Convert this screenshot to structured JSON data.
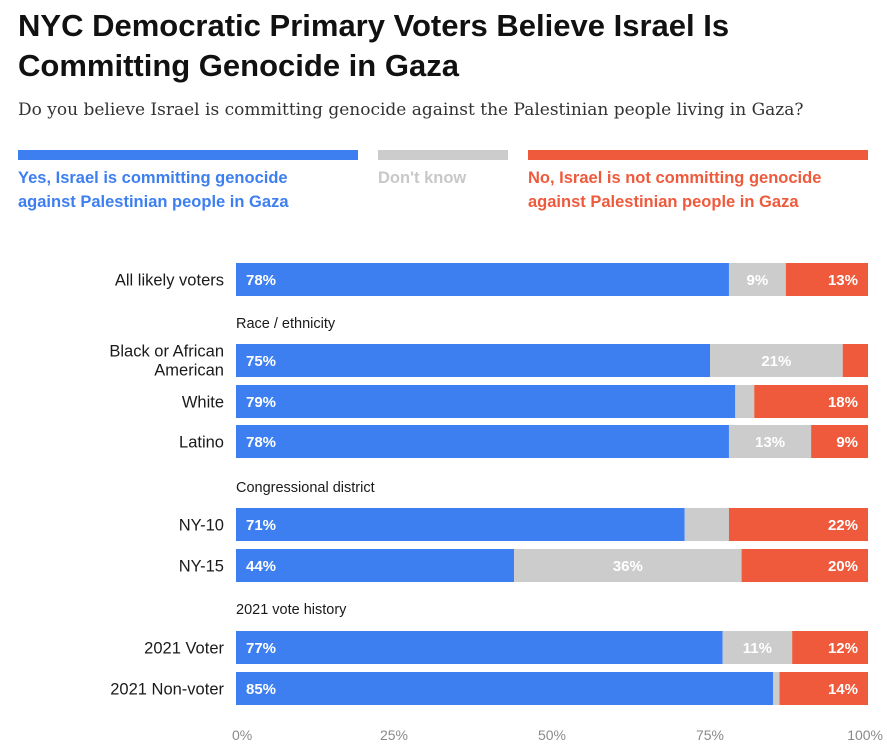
{
  "header": {
    "title": "NYC Democratic Primary Voters Believe Israel Is Committing Genocide in Gaza",
    "subtitle": "Do you believe Israel is committing genocide against the Palestinian people living in Gaza?"
  },
  "legend": [
    {
      "key": "yes",
      "text": "Yes, Israel is committing genocide against Palestinian people in Gaza"
    },
    {
      "key": "dk",
      "text": "Don't know"
    },
    {
      "key": "no",
      "text": "No, Israel is not committing genocide against Palestinian people in Gaza"
    }
  ],
  "colors": {
    "yes": "#3d7ff0",
    "dk": "#cccccc",
    "no": "#ef5a3c",
    "dk_text": "#c8c8c8"
  },
  "chart_data": {
    "type": "bar",
    "orientation": "horizontal",
    "stacked": true,
    "title": "NYC Democratic Primary Voters Believe Israel Is Committing Genocide in Gaza",
    "series": [
      {
        "key": "yes",
        "name": "Yes, Israel is committing genocide against Palestinian people in Gaza"
      },
      {
        "key": "dk",
        "name": "Don't know"
      },
      {
        "key": "no",
        "name": "No, Israel is not committing genocide against Palestinian people in Gaza"
      }
    ],
    "rows": [
      {
        "type": "bar",
        "label": "All likely voters",
        "values": {
          "yes": 78,
          "dk": 9,
          "no": 13
        },
        "labels": {
          "yes": "78%",
          "dk": "9%",
          "no": "13%"
        }
      },
      {
        "type": "group",
        "label": "Race / ethnicity"
      },
      {
        "type": "bar",
        "label": "Black or African American",
        "values": {
          "yes": 75,
          "dk": 21,
          "no": 4
        },
        "labels": {
          "yes": "75%",
          "dk": "21%",
          "no": ""
        }
      },
      {
        "type": "bar",
        "label": "White",
        "values": {
          "yes": 79,
          "dk": 3,
          "no": 18
        },
        "labels": {
          "yes": "79%",
          "dk": "",
          "no": "18%"
        }
      },
      {
        "type": "bar",
        "label": "Latino",
        "values": {
          "yes": 78,
          "dk": 13,
          "no": 9
        },
        "labels": {
          "yes": "78%",
          "dk": "13%",
          "no": "9%"
        }
      },
      {
        "type": "group",
        "label": "Congressional district"
      },
      {
        "type": "bar",
        "label": "NY-10",
        "values": {
          "yes": 71,
          "dk": 7,
          "no": 22
        },
        "labels": {
          "yes": "71%",
          "dk": "",
          "no": "22%"
        }
      },
      {
        "type": "bar",
        "label": "NY-15",
        "values": {
          "yes": 44,
          "dk": 36,
          "no": 20
        },
        "labels": {
          "yes": "44%",
          "dk": "36%",
          "no": "20%"
        }
      },
      {
        "type": "group",
        "label": "2021 vote history"
      },
      {
        "type": "bar",
        "label": "2021 Voter",
        "values": {
          "yes": 77,
          "dk": 11,
          "no": 12
        },
        "labels": {
          "yes": "77%",
          "dk": "11%",
          "no": "12%"
        }
      },
      {
        "type": "bar",
        "label": "2021 Non-voter",
        "values": {
          "yes": 85,
          "dk": 1,
          "no": 14
        },
        "labels": {
          "yes": "85%",
          "dk": "",
          "no": "14%"
        }
      }
    ],
    "x_ticks": [
      "0%",
      "25%",
      "50%",
      "75%",
      "100%"
    ],
    "xlim": [
      0,
      100
    ]
  }
}
